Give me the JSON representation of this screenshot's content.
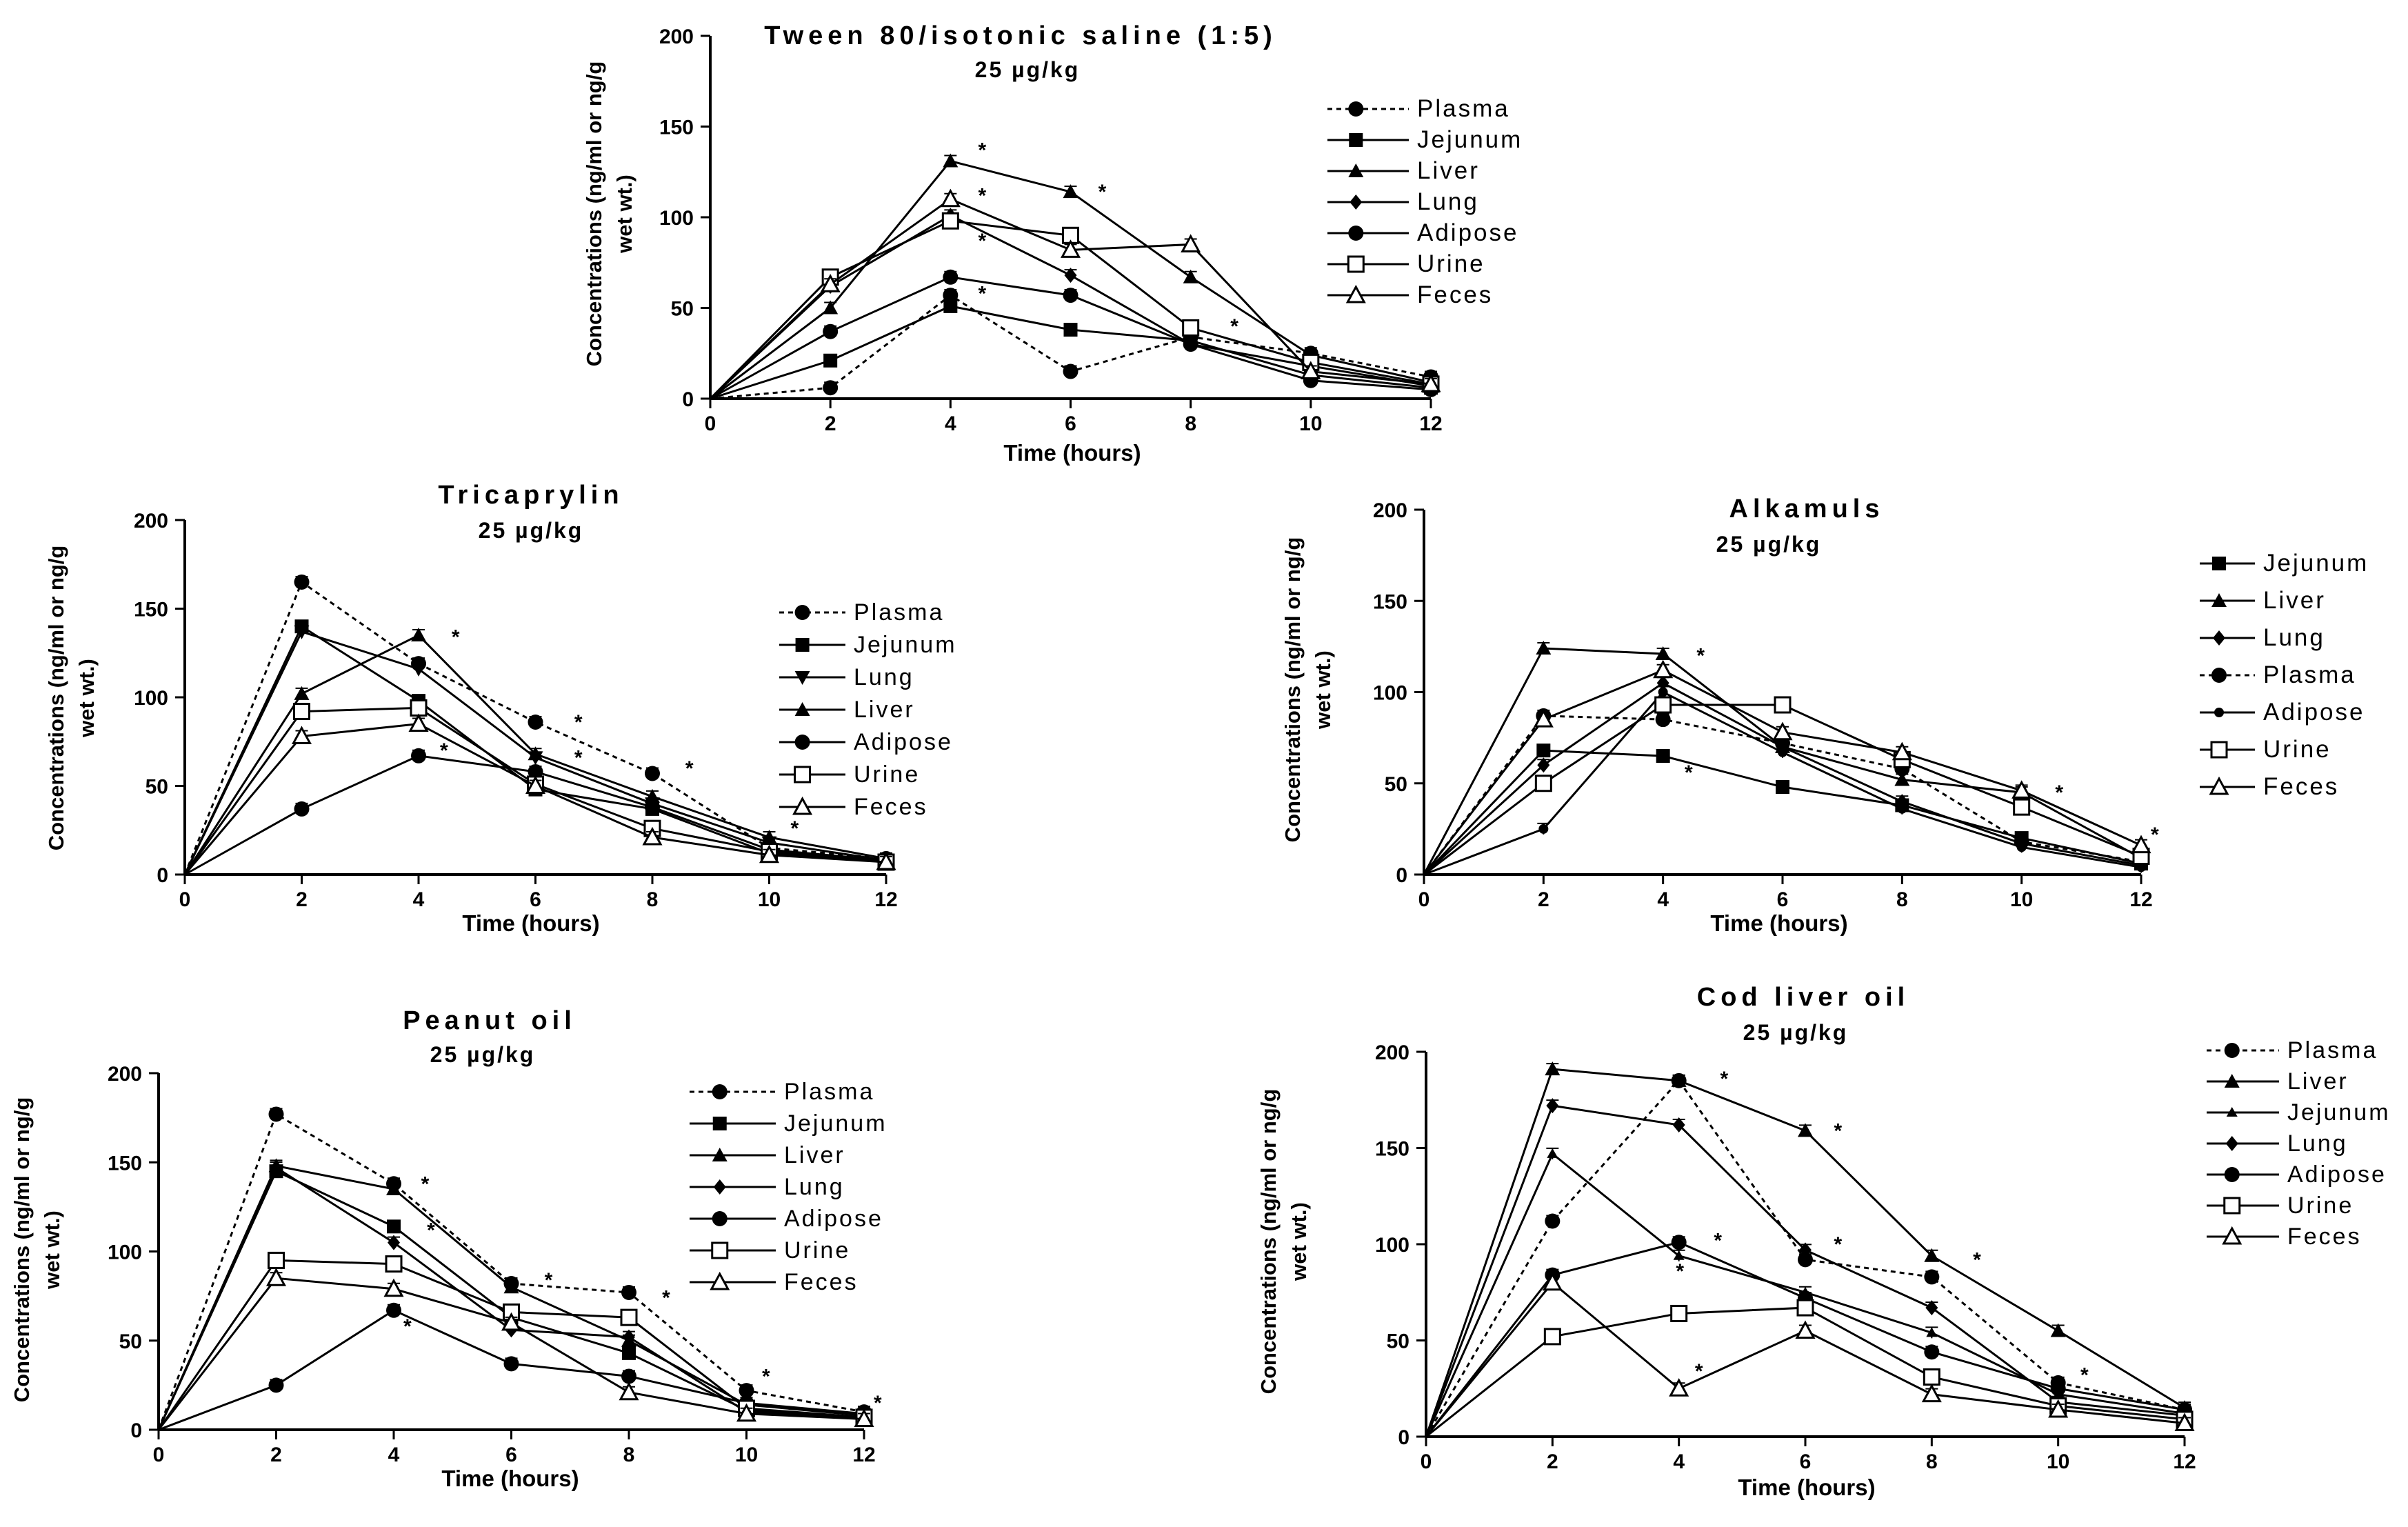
{
  "chart_data": [
    {
      "type": "line",
      "title": "Tween 80/isotonic saline (1:5)",
      "subtitle": "25 µg/kg",
      "xlabel": "Time (hours)",
      "ylabel_lines": [
        "Concentrations (ng/ml or ng/g",
        "wet wt.)"
      ],
      "xlim": [
        0,
        12
      ],
      "ylim": [
        0,
        200
      ],
      "xticks": [
        0,
        2,
        4,
        6,
        8,
        10,
        12
      ],
      "yticks": [
        0,
        50,
        100,
        150,
        200
      ],
      "x": [
        0,
        2,
        4,
        6,
        8,
        10,
        12
      ],
      "legend": [
        "Plasma",
        "Jejunum",
        "Liver",
        "Lung",
        "Adipose",
        "Urine",
        "Feces"
      ],
      "series": [
        {
          "name": "Plasma",
          "marker": "circle",
          "dashed": true,
          "values": [
            0,
            6,
            57,
            15,
            34,
            25,
            12
          ]
        },
        {
          "name": "Jejunum",
          "marker": "square",
          "dashed": false,
          "values": [
            0,
            21,
            51,
            38,
            32,
            13,
            6
          ]
        },
        {
          "name": "Liver",
          "marker": "triangle",
          "dashed": false,
          "values": [
            0,
            50,
            131,
            114,
            67,
            24,
            9
          ]
        },
        {
          "name": "Lung",
          "marker": "diamond",
          "dashed": false,
          "values": [
            0,
            62,
            101,
            68,
            30,
            18,
            7
          ]
        },
        {
          "name": "Adipose",
          "marker": "circle",
          "dashed": false,
          "values": [
            0,
            37,
            67,
            57,
            30,
            10,
            5
          ]
        },
        {
          "name": "Urine",
          "marker": "square-open",
          "dashed": false,
          "values": [
            0,
            67,
            98,
            90,
            39,
            20,
            8
          ]
        },
        {
          "name": "Feces",
          "marker": "triangle-open",
          "dashed": false,
          "values": [
            0,
            63,
            110,
            82,
            85,
            15,
            8
          ]
        }
      ],
      "stars": [
        [
          4.3,
          137
        ],
        [
          4.3,
          112
        ],
        [
          4.3,
          87
        ],
        [
          4.3,
          58
        ],
        [
          6.3,
          114
        ],
        [
          8.5,
          40
        ]
      ]
    },
    {
      "type": "line",
      "title": "Tricaprylin",
      "subtitle": "25 µg/kg",
      "xlabel": "Time (hours)",
      "ylabel_lines": [
        "Concentrations (ng/ml or ng/g",
        "wet wt.)"
      ],
      "xlim": [
        0,
        12
      ],
      "ylim": [
        0,
        200
      ],
      "xticks": [
        0,
        2,
        4,
        6,
        8,
        10,
        12
      ],
      "yticks": [
        0,
        50,
        100,
        150,
        200
      ],
      "x": [
        0,
        2,
        4,
        6,
        8,
        10,
        12
      ],
      "legend": [
        "Plasma",
        "Jejunum",
        "Lung",
        "Liver",
        "Adipose",
        "Urine",
        "Feces"
      ],
      "series": [
        {
          "name": "Plasma",
          "marker": "circle",
          "dashed": true,
          "values": [
            0,
            165,
            119,
            86,
            57,
            15,
            9
          ]
        },
        {
          "name": "Jejunum",
          "marker": "square",
          "dashed": false,
          "values": [
            0,
            140,
            98,
            48,
            37,
            12,
            8
          ]
        },
        {
          "name": "Lung",
          "marker": "triangle-down",
          "dashed": false,
          "values": [
            0,
            137,
            116,
            66,
            40,
            18,
            8
          ]
        },
        {
          "name": "Liver",
          "marker": "triangle",
          "dashed": false,
          "values": [
            0,
            102,
            135,
            68,
            44,
            21,
            9
          ]
        },
        {
          "name": "Adipose",
          "marker": "circle",
          "dashed": false,
          "values": [
            0,
            37,
            67,
            58,
            38,
            14,
            8
          ]
        },
        {
          "name": "Urine",
          "marker": "square-open",
          "dashed": false,
          "values": [
            0,
            92,
            94,
            51,
            26,
            13,
            7
          ]
        },
        {
          "name": "Feces",
          "marker": "triangle-open",
          "dashed": false,
          "values": [
            0,
            78,
            85,
            50,
            21,
            11,
            7
          ]
        }
      ],
      "stars": [
        [
          4.4,
          134
        ],
        [
          4.2,
          70
        ],
        [
          6.5,
          86
        ],
        [
          6.5,
          66
        ],
        [
          8.4,
          60
        ],
        [
          10.2,
          26
        ]
      ]
    },
    {
      "type": "line",
      "title": "Alkamuls",
      "subtitle": "25 µg/kg",
      "xlabel": "Time (hours)",
      "ylabel_lines": [
        "Concentrations (ng/ml or ng/g",
        "wet wt.)"
      ],
      "xlim": [
        0,
        12
      ],
      "ylim": [
        0,
        200
      ],
      "xticks": [
        0,
        2,
        4,
        6,
        8,
        10,
        12
      ],
      "yticks": [
        0,
        50,
        100,
        150,
        200
      ],
      "x": [
        0,
        2,
        4,
        6,
        8,
        10,
        12
      ],
      "legend": [
        "Jejunum",
        "Liver",
        "Lung",
        "Plasma",
        "Adipose",
        "Urine",
        "Feces"
      ],
      "series": [
        {
          "name": "Jejunum",
          "marker": "square",
          "dashed": false,
          "values": [
            0,
            68,
            65,
            48,
            38,
            20,
            6
          ]
        },
        {
          "name": "Liver",
          "marker": "triangle",
          "dashed": false,
          "values": [
            0,
            124,
            121,
            70,
            52,
            45,
            9
          ]
        },
        {
          "name": "Lung",
          "marker": "diamond",
          "dashed": false,
          "values": [
            0,
            60,
            105,
            70,
            40,
            17,
            5
          ]
        },
        {
          "name": "Plasma",
          "marker": "circle",
          "dashed": true,
          "values": [
            0,
            87,
            85,
            72,
            58,
            18,
            7
          ]
        },
        {
          "name": "Adipose",
          "marker": "circle-small",
          "dashed": false,
          "values": [
            0,
            25,
            100,
            67,
            36,
            15,
            4
          ]
        },
        {
          "name": "Urine",
          "marker": "square-open",
          "dashed": false,
          "values": [
            0,
            50,
            93,
            93,
            63,
            37,
            10
          ]
        },
        {
          "name": "Feces",
          "marker": "triangle-open",
          "dashed": false,
          "values": [
            0,
            85,
            112,
            78,
            67,
            46,
            16
          ]
        }
      ],
      "stars": [
        [
          4.4,
          120
        ],
        [
          4.2,
          56
        ],
        [
          10.4,
          45
        ],
        [
          12,
          22
        ]
      ]
    },
    {
      "type": "line",
      "title": "Peanut oil",
      "subtitle": "25 µg/kg",
      "xlabel": "Time (hours)",
      "ylabel_lines": [
        "Concentrations (ng/ml or ng/g",
        "wet wt.)"
      ],
      "xlim": [
        0,
        12
      ],
      "ylim": [
        0,
        200
      ],
      "xticks": [
        0,
        2,
        4,
        6,
        8,
        10,
        12
      ],
      "yticks": [
        0,
        50,
        100,
        150,
        200
      ],
      "x": [
        0,
        2,
        4,
        6,
        8,
        10,
        12
      ],
      "legend": [
        "Plasma",
        "Jejunum",
        "Liver",
        "Lung",
        "Adipose",
        "Urine",
        "Feces"
      ],
      "series": [
        {
          "name": "Plasma",
          "marker": "circle",
          "dashed": true,
          "values": [
            0,
            177,
            138,
            82,
            77,
            22,
            10
          ]
        },
        {
          "name": "Jejunum",
          "marker": "square",
          "dashed": false,
          "values": [
            0,
            145,
            114,
            63,
            43,
            11,
            7
          ]
        },
        {
          "name": "Liver",
          "marker": "triangle",
          "dashed": false,
          "values": [
            0,
            148,
            135,
            80,
            50,
            14,
            8
          ]
        },
        {
          "name": "Lung",
          "marker": "diamond",
          "dashed": false,
          "values": [
            0,
            147,
            105,
            56,
            52,
            10,
            6
          ]
        },
        {
          "name": "Adipose",
          "marker": "circle",
          "dashed": false,
          "values": [
            0,
            25,
            67,
            37,
            30,
            15,
            9
          ]
        },
        {
          "name": "Urine",
          "marker": "square-open",
          "dashed": false,
          "values": [
            0,
            95,
            93,
            66,
            63,
            12,
            7
          ]
        },
        {
          "name": "Feces",
          "marker": "triangle-open",
          "dashed": false,
          "values": [
            0,
            85,
            79,
            60,
            21,
            9,
            6
          ]
        }
      ],
      "stars": [
        [
          4.3,
          138
        ],
        [
          4.4,
          112
        ],
        [
          4.0,
          58
        ],
        [
          6.4,
          84
        ],
        [
          8.4,
          74
        ],
        [
          10.1,
          30
        ],
        [
          12,
          15
        ]
      ]
    },
    {
      "type": "line",
      "title": "Cod liver oil",
      "subtitle": "25 µg/kg",
      "xlabel": "Time (hours)",
      "ylabel_lines": [
        "Concentrations (ng/ml or ng/g",
        "wet wt.)"
      ],
      "xlim": [
        0,
        12
      ],
      "ylim": [
        0,
        200
      ],
      "xticks": [
        0,
        2,
        4,
        6,
        8,
        10,
        12
      ],
      "yticks": [
        0,
        50,
        100,
        150,
        200
      ],
      "x": [
        0,
        2,
        4,
        6,
        8,
        10,
        12
      ],
      "legend": [
        "Plasma",
        "Liver",
        "Jejunum",
        "Lung",
        "Adipose",
        "Urine",
        "Feces"
      ],
      "series": [
        {
          "name": "Plasma",
          "marker": "circle",
          "dashed": true,
          "values": [
            0,
            112,
            185,
            92,
            83,
            28,
            14
          ]
        },
        {
          "name": "Liver",
          "marker": "triangle",
          "dashed": false,
          "values": [
            0,
            191,
            185,
            159,
            94,
            55,
            15
          ]
        },
        {
          "name": "Jejunum",
          "marker": "triangle-small",
          "dashed": false,
          "values": [
            0,
            147,
            94,
            75,
            54,
            22,
            12
          ]
        },
        {
          "name": "Lung",
          "marker": "diamond",
          "dashed": false,
          "values": [
            0,
            172,
            162,
            97,
            67,
            18,
            11
          ]
        },
        {
          "name": "Adipose",
          "marker": "circle",
          "dashed": false,
          "values": [
            0,
            84,
            101,
            72,
            44,
            25,
            14
          ]
        },
        {
          "name": "Urine",
          "marker": "square-open",
          "dashed": false,
          "values": [
            0,
            52,
            64,
            67,
            31,
            16,
            9
          ]
        },
        {
          "name": "Feces",
          "marker": "triangle-open",
          "dashed": false,
          "values": [
            0,
            80,
            25,
            55,
            22,
            14,
            7
          ]
        }
      ],
      "stars": [
        [
          4.5,
          186
        ],
        [
          4.4,
          102
        ],
        [
          3.8,
          86
        ],
        [
          4.1,
          34
        ],
        [
          6.3,
          159
        ],
        [
          6.3,
          100
        ],
        [
          8.5,
          92
        ],
        [
          10.2,
          32
        ]
      ]
    }
  ]
}
